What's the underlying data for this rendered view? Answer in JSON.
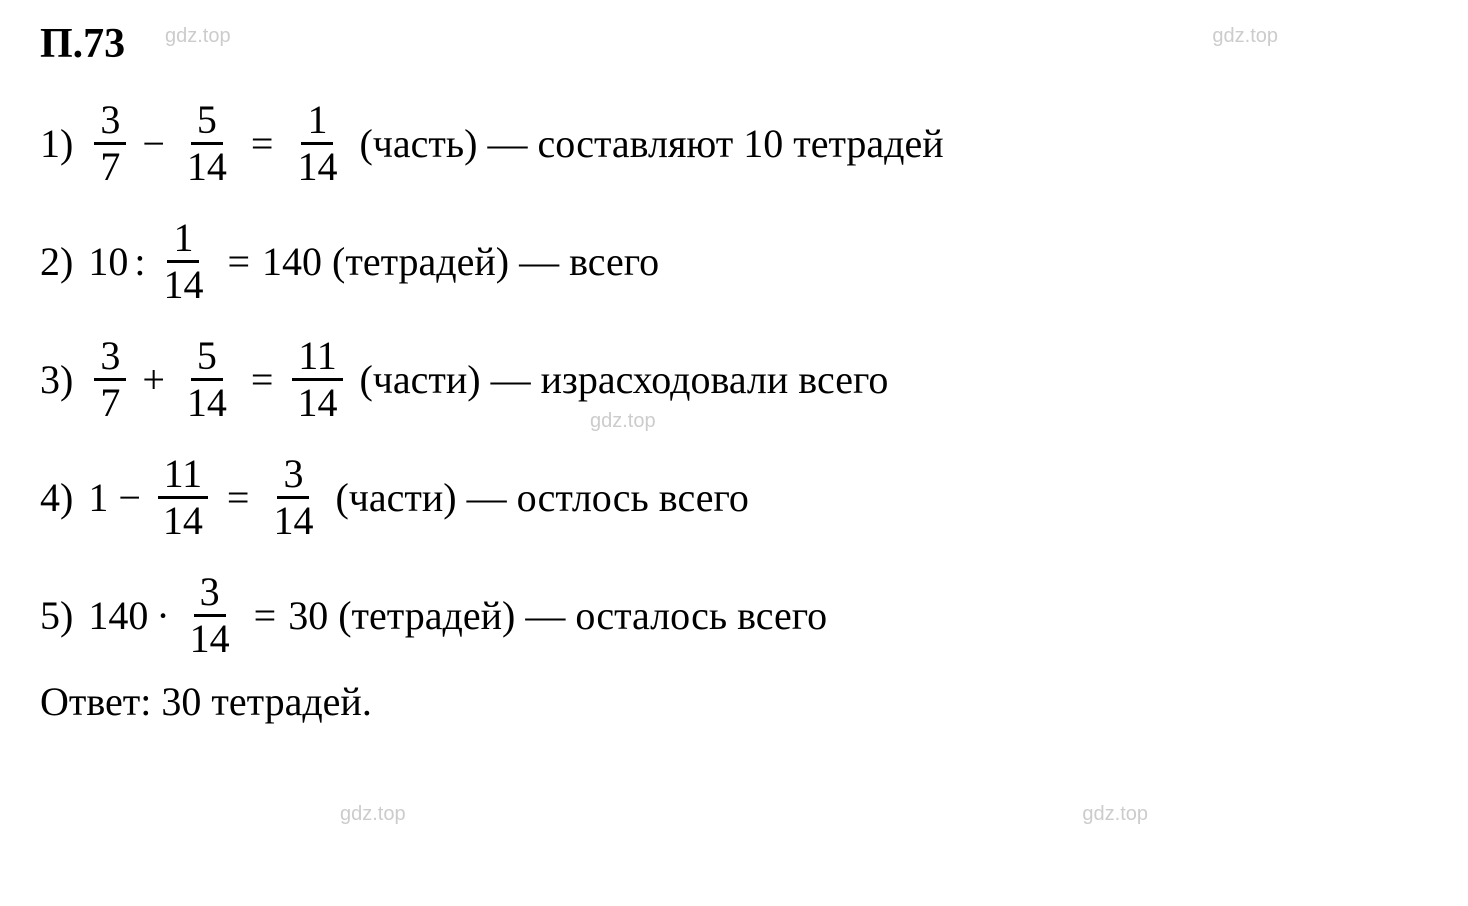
{
  "header": "П.73",
  "watermark": "gdz.top",
  "lines": [
    {
      "num": "1)",
      "frac1": {
        "n": "3",
        "d": "7"
      },
      "op": "−",
      "frac2": {
        "n": "5",
        "d": "14"
      },
      "eq": "=",
      "frac3": {
        "n": "1",
        "d": "14"
      },
      "text": "(часть) — составляют 10 тетрадей"
    },
    {
      "num": "2)",
      "prefix": "10",
      "colon": ":",
      "frac1": {
        "n": "1",
        "d": "14"
      },
      "eq": "=",
      "result": "140",
      "text": "(тетрадей) — всего"
    },
    {
      "num": "3)",
      "frac1": {
        "n": "3",
        "d": "7"
      },
      "op": "+",
      "frac2": {
        "n": "5",
        "d": "14"
      },
      "eq": "=",
      "frac3": {
        "n": "11",
        "d": "14"
      },
      "text": "(части) — израсходовали всего"
    },
    {
      "num": "4)",
      "prefix": "1",
      "op": "−",
      "frac1": {
        "n": "11",
        "d": "14"
      },
      "eq": "=",
      "frac3": {
        "n": "3",
        "d": "14"
      },
      "text": "(части) — остлось всего"
    },
    {
      "num": "5)",
      "prefix": "140",
      "mult": "·",
      "frac1": {
        "n": "3",
        "d": "14"
      },
      "eq": "=",
      "result": "30",
      "text": "(тетрадей) — осталось всего"
    }
  ],
  "answer": "Ответ: 30 тетрадей.",
  "colors": {
    "text": "#000000",
    "watermark": "#cccccc",
    "background": "#ffffff"
  },
  "fontsize": {
    "header": 42,
    "body": 40,
    "watermark": 20
  }
}
